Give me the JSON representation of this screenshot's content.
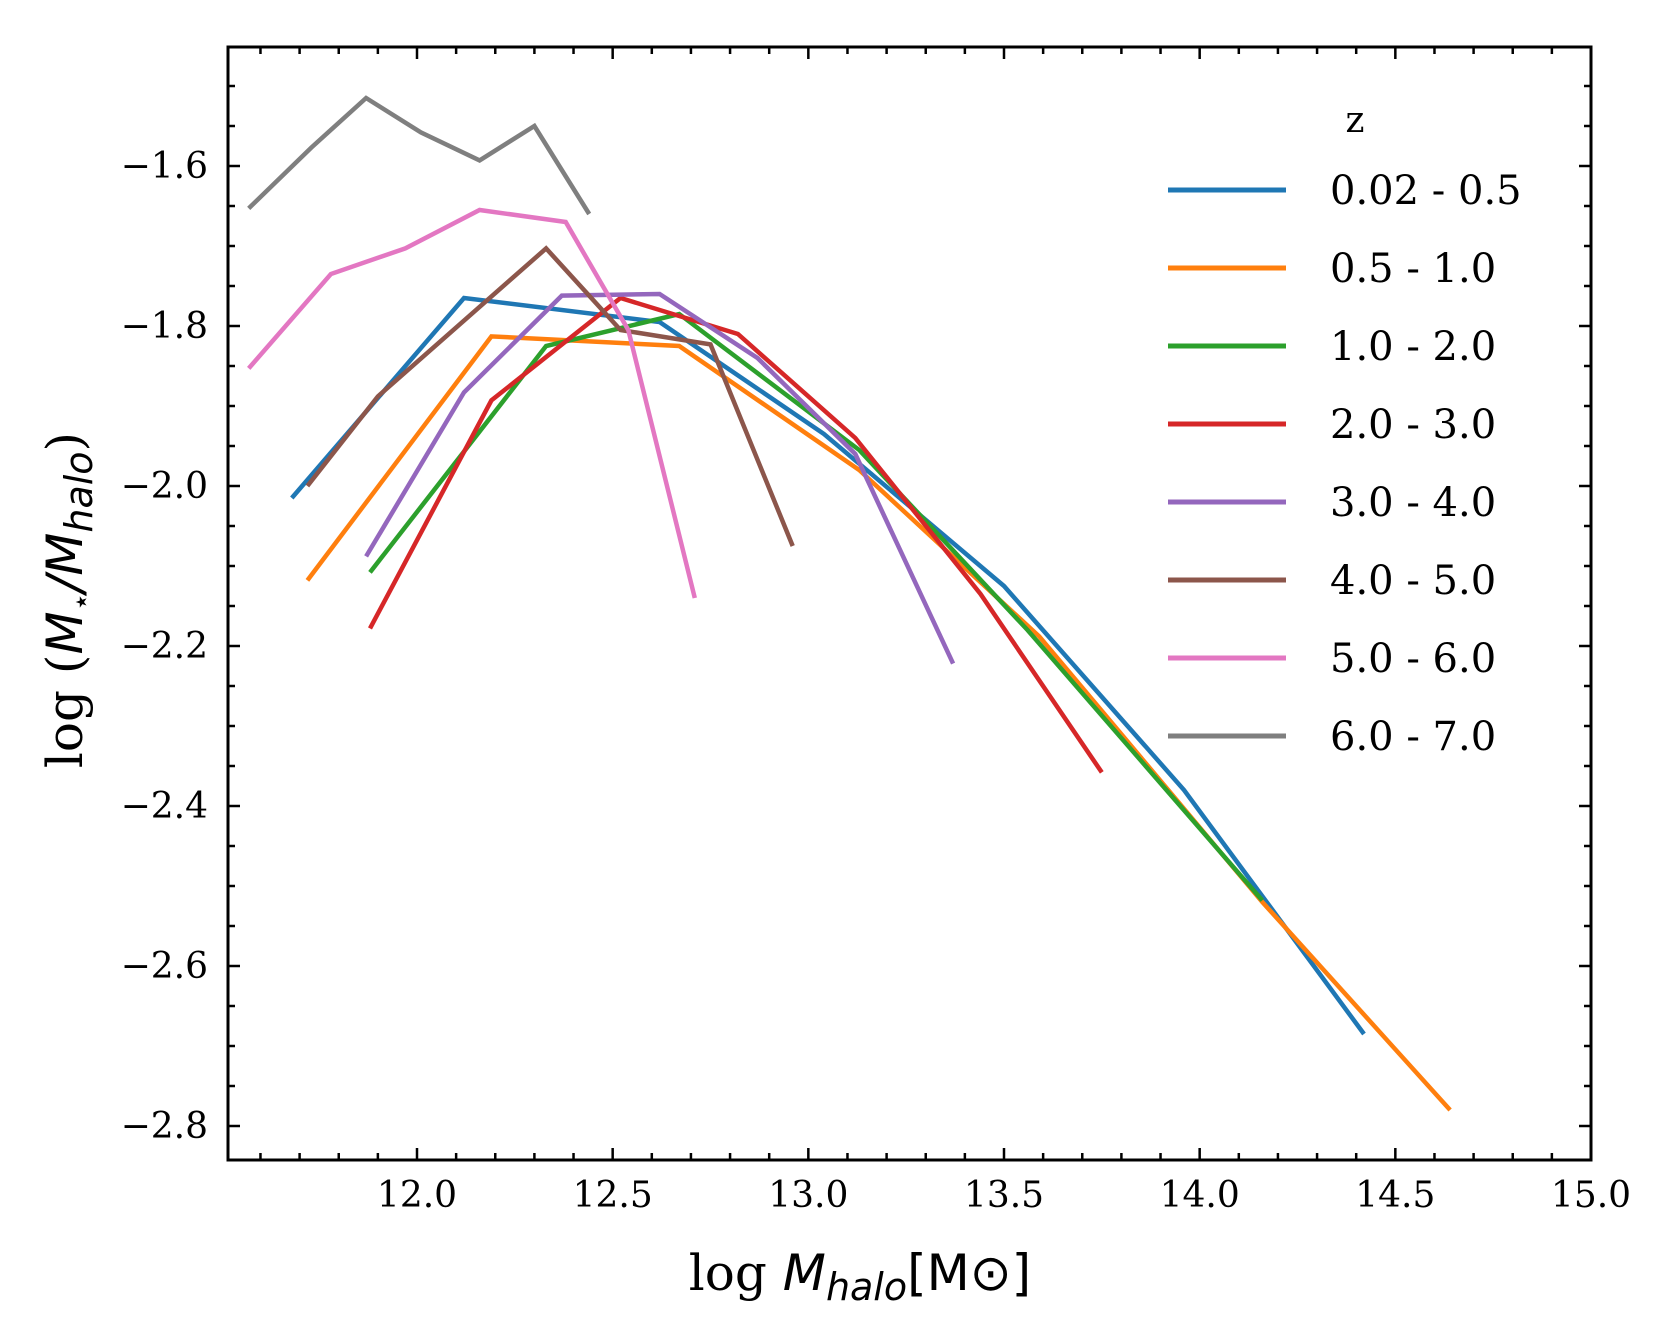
{
  "chart_data": {
    "type": "line",
    "title": "",
    "xlabel": {
      "prefix": "log ",
      "symbol": "M",
      "sub": "halo",
      "unit": "[M⊙]"
    },
    "ylabel": {
      "prefix": "log (",
      "num": "M",
      "num_sub": "⋆",
      "sep": "/",
      "den": "M",
      "den_sub": "halo",
      "suffix": ")"
    },
    "xlim": [
      11.57,
      15.0
    ],
    "ylim": [
      -2.845,
      -1.455
    ],
    "xticks": [
      12.0,
      12.5,
      13.0,
      13.5,
      14.0,
      14.5,
      15.0
    ],
    "xtick_labels": [
      "12.0",
      "12.5",
      "13.0",
      "13.5",
      "14.0",
      "14.5",
      "15.0"
    ],
    "yticks": [
      -1.6,
      -1.8,
      -2.0,
      -2.2,
      -2.4,
      -2.6,
      -2.8
    ],
    "ytick_labels": [
      "−1.6",
      "−1.8",
      "−2.0",
      "−2.2",
      "−2.4",
      "−2.6",
      "−2.8"
    ],
    "grid": false,
    "legend": {
      "title": "z",
      "position": "top-right"
    },
    "series": [
      {
        "name": "0.02 - 0.5",
        "color": "#1f77b4",
        "x": [
          11.68,
          12.12,
          12.62,
          13.04,
          13.5,
          13.96,
          14.42
        ],
        "y": [
          -2.015,
          -1.765,
          -1.795,
          -1.935,
          -2.125,
          -2.38,
          -2.685
        ]
      },
      {
        "name": "0.5 - 1.0",
        "color": "#ff7f0e",
        "x": [
          11.72,
          12.19,
          12.67,
          13.13,
          13.59,
          14.16,
          14.64
        ],
        "y": [
          -2.118,
          -1.813,
          -1.825,
          -1.98,
          -2.188,
          -2.52,
          -2.78
        ]
      },
      {
        "name": "1.0 - 2.0",
        "color": "#2ca02c",
        "x": [
          11.88,
          12.33,
          12.67,
          13.13,
          13.56,
          14.16
        ],
        "y": [
          -2.108,
          -1.825,
          -1.785,
          -1.955,
          -2.18,
          -2.518
        ]
      },
      {
        "name": "2.0 - 3.0",
        "color": "#d62728",
        "x": [
          11.88,
          12.19,
          12.52,
          12.82,
          13.12,
          13.44,
          13.75
        ],
        "y": [
          -2.178,
          -1.893,
          -1.765,
          -1.81,
          -1.94,
          -2.135,
          -2.358
        ]
      },
      {
        "name": "3.0 - 4.0",
        "color": "#9467bd",
        "x": [
          11.87,
          12.12,
          12.37,
          12.62,
          12.87,
          13.12,
          13.37
        ],
        "y": [
          -2.088,
          -1.883,
          -1.762,
          -1.76,
          -1.84,
          -1.96,
          -2.222
        ]
      },
      {
        "name": "4.0 - 5.0",
        "color": "#8c564b",
        "x": [
          11.72,
          11.9,
          12.33,
          12.52,
          12.75,
          12.96
        ],
        "y": [
          -2.0,
          -1.888,
          -1.703,
          -1.805,
          -1.823,
          -2.075
        ]
      },
      {
        "name": "5.0 - 6.0",
        "color": "#e377c2",
        "x": [
          11.57,
          11.78,
          11.97,
          12.16,
          12.38,
          12.54,
          12.71
        ],
        "y": [
          -1.853,
          -1.735,
          -1.703,
          -1.655,
          -1.67,
          -1.805,
          -2.14
        ]
      },
      {
        "name": "6.0 - 7.0",
        "color": "#7f7f7f",
        "x": [
          11.57,
          11.73,
          11.87,
          12.01,
          12.16,
          12.3,
          12.44
        ],
        "y": [
          -1.653,
          -1.577,
          -1.515,
          -1.558,
          -1.593,
          -1.55,
          -1.66
        ]
      }
    ]
  }
}
